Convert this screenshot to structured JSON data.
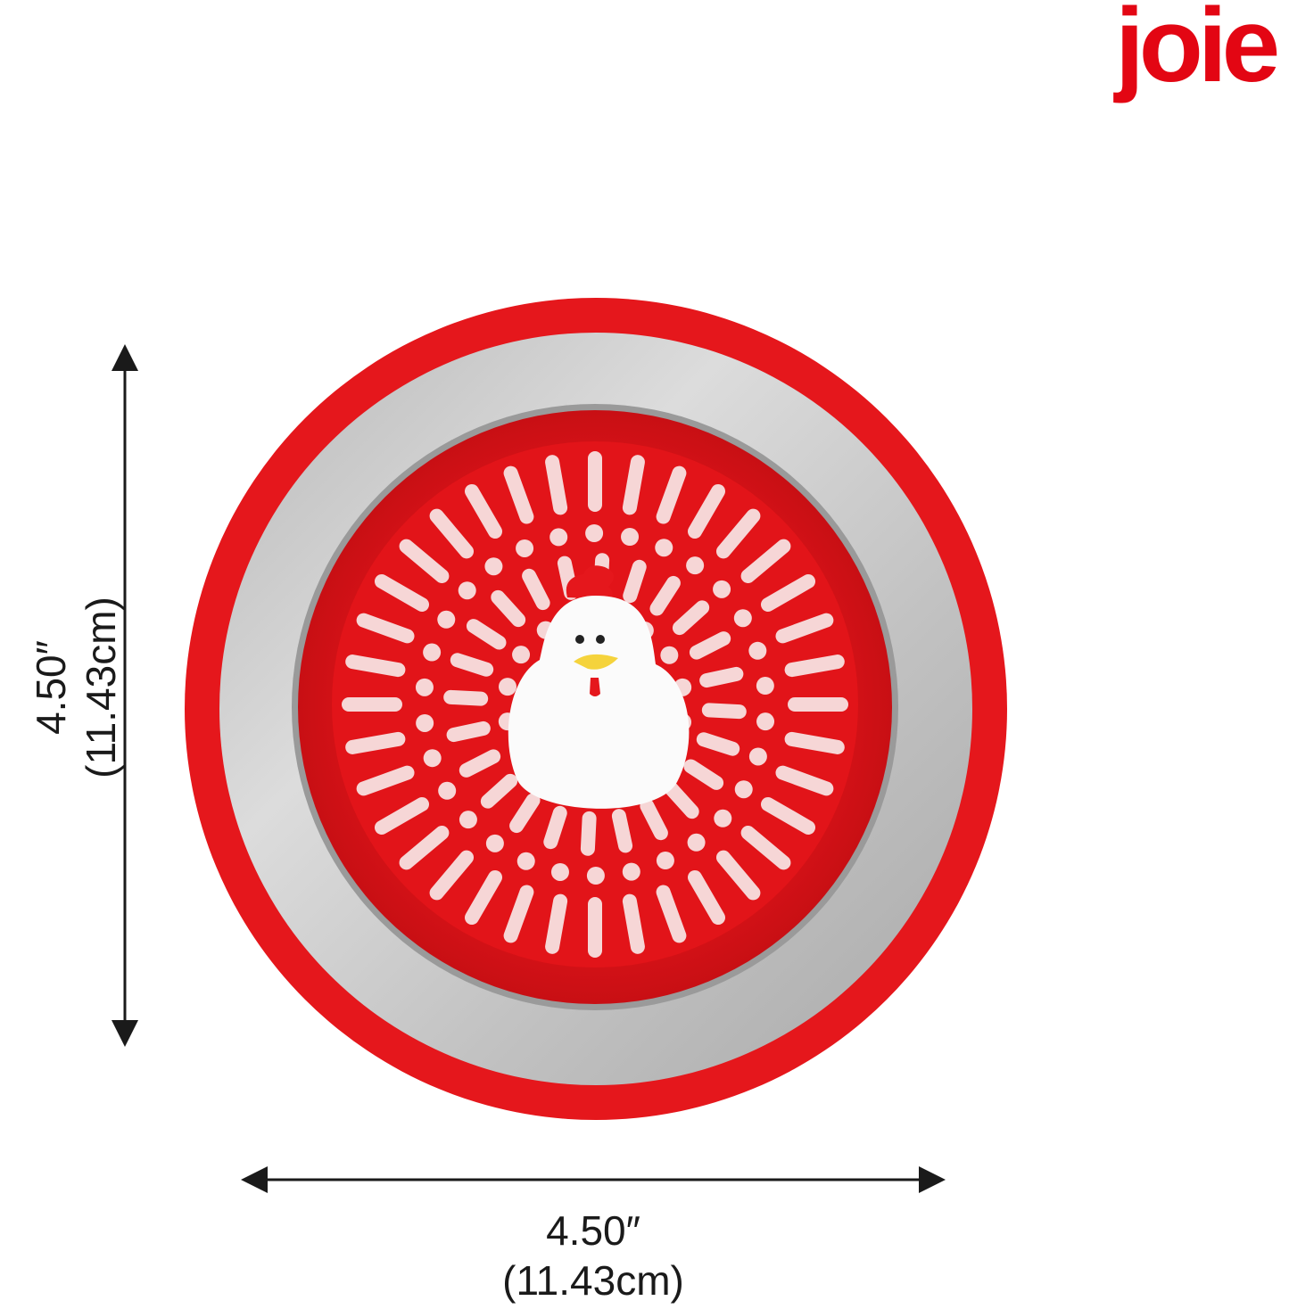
{
  "brand": {
    "logo_text": "joie",
    "color": "#e30613"
  },
  "product": {
    "name_icon": "sink-strainer-chicken-icon",
    "colors": {
      "silicone_red": "#e5171c",
      "steel": "#c4c4c4",
      "chicken_white": "#ffffff",
      "beak": "#f5d33c"
    }
  },
  "dimensions": {
    "width": {
      "inches": "4.50″",
      "cm": "(11.43cm)"
    },
    "height": {
      "inches": "4.50″",
      "cm": "(11.43cm)"
    }
  }
}
